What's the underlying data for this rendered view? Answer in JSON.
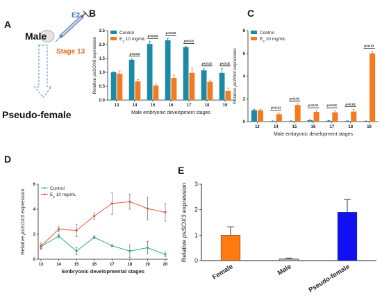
{
  "panel_labels": {
    "a": "A",
    "b": "B",
    "c": "C",
    "d": "D",
    "e": "E"
  },
  "schematic": {
    "treatment": "E2",
    "sex_from": "Male",
    "stage": "Stage 13",
    "sex_to": "Pseudo-female",
    "colors": {
      "treatment": "#3b6fb6",
      "stage": "#e06a1b",
      "arrow": "#4a8ad0"
    }
  },
  "chart_data": [
    {
      "id": "B",
      "type": "bar",
      "categories": [
        "13",
        "14",
        "15",
        "16",
        "17",
        "18",
        "19"
      ],
      "xlabel": "Male embryonic development stages",
      "ylabel_parts": [
        "Relative ",
        "psSOX9",
        " expression"
      ],
      "ylim": [
        0,
        2.5
      ],
      "yticks": [
        "0.0",
        "0.5",
        "1.0",
        "1.5",
        "2.0",
        "2.5"
      ],
      "legend": {
        "placement": "top-left",
        "entries": [
          "Control",
          "E",
          "2",
          " 10 mg/mL"
        ]
      },
      "series": [
        {
          "name": "Control",
          "color": "#1b8aa6",
          "values": [
            1.0,
            1.45,
            2.02,
            2.15,
            1.9,
            1.07,
            0.98
          ],
          "errors": [
            0.02,
            0.03,
            0.1,
            0.07,
            0.04,
            0.06,
            0.15
          ]
        },
        {
          "name": "E2 10 mg/mL",
          "color": "#f47a20",
          "values": [
            0.95,
            0.67,
            0.52,
            0.8,
            0.98,
            0.66,
            0.33
          ],
          "errors": [
            0.1,
            0.07,
            0.06,
            0.1,
            0.17,
            0.06,
            0.1
          ]
        }
      ],
      "annotations": [
        {
          "index": 1,
          "text": "p<0.01"
        },
        {
          "index": 2,
          "text": "p<0.01"
        },
        {
          "index": 3,
          "text": "p<0.01"
        },
        {
          "index": 4,
          "text": "p<0.01"
        },
        {
          "index": 5,
          "text": "p<0.01"
        },
        {
          "index": 6,
          "text": "p<0.01"
        }
      ]
    },
    {
      "id": "C",
      "type": "bar",
      "categories": [
        "13",
        "14",
        "15",
        "16",
        "17",
        "18",
        "19"
      ],
      "xlabel": "Male embryonic development stages",
      "ylabel_parts": [
        "Relative ",
        "psWnt4",
        " expression"
      ],
      "ylim": [
        0,
        8
      ],
      "yticks": [
        "0",
        "2",
        "4",
        "6",
        "8"
      ],
      "legend": {
        "placement": "top-left",
        "entries": [
          "Control",
          "E",
          "2",
          " 10 mg/mL"
        ]
      },
      "series": [
        {
          "name": "Control",
          "color": "#1b8aa6",
          "values": [
            1.0,
            0.05,
            0.05,
            0.12,
            0.08,
            0.06,
            0.05
          ],
          "errors": [
            0.08,
            0.02,
            0.02,
            0.04,
            0.02,
            0.02,
            0.02
          ]
        },
        {
          "name": "E2 10 mg/mL",
          "color": "#f47a20",
          "values": [
            1.0,
            0.65,
            1.45,
            0.85,
            0.82,
            0.88,
            6.0
          ],
          "errors": [
            0.1,
            0.1,
            0.12,
            0.12,
            0.15,
            0.2,
            0.2
          ]
        }
      ],
      "annotations": [
        {
          "index": 1,
          "text": "p<0.01"
        },
        {
          "index": 2,
          "text": "p<0.01"
        },
        {
          "index": 3,
          "text": "p<0.01"
        },
        {
          "index": 4,
          "text": "p<0.01"
        },
        {
          "index": 5,
          "text": "p<0.01"
        },
        {
          "index": 6,
          "text": "p<0.01"
        }
      ]
    },
    {
      "id": "D",
      "type": "line",
      "x": [
        "13",
        "14",
        "15",
        "16",
        "17",
        "18",
        "19",
        "20"
      ],
      "xlabel": "Embryonic developmental stages",
      "ylabel_parts": [
        "Relative ",
        "psSOX3",
        " expression"
      ],
      "ylim": [
        0,
        6
      ],
      "yticks": [
        "0",
        "2",
        "4",
        "6"
      ],
      "legend": {
        "placement": "top-left",
        "entries": [
          "Control",
          "E",
          "2",
          " 10 mg/mL"
        ]
      },
      "series": [
        {
          "name": "Control",
          "color": "#27ae7a",
          "values": [
            1.0,
            1.85,
            0.65,
            1.75,
            1.08,
            0.65,
            0.92,
            0.38
          ],
          "errors": [
            0.15,
            0.15,
            0.3,
            0.12,
            0.08,
            0.5,
            0.5,
            0.2
          ]
        },
        {
          "name": "E2 10 mg/mL",
          "color": "#e4583a",
          "values": [
            1.05,
            2.4,
            2.3,
            3.45,
            4.45,
            4.6,
            4.05,
            3.75
          ],
          "errors": [
            0.25,
            0.2,
            0.5,
            0.25,
            0.85,
            0.6,
            0.9,
            0.7
          ]
        }
      ]
    },
    {
      "id": "E",
      "type": "bar",
      "categories": [
        "Female",
        "Male",
        "Pseudo-female"
      ],
      "ylabel_parts": [
        "Relative ",
        "psSOX3",
        " expression"
      ],
      "ylim": [
        0,
        3
      ],
      "yticks": [
        "0",
        "1",
        "2",
        "3"
      ],
      "colors": [
        "#ff7a10",
        "#aaaaaa",
        "#1010f0"
      ],
      "values": [
        1.0,
        0.07,
        1.9
      ],
      "errors": [
        0.32,
        0.03,
        0.5
      ]
    }
  ]
}
